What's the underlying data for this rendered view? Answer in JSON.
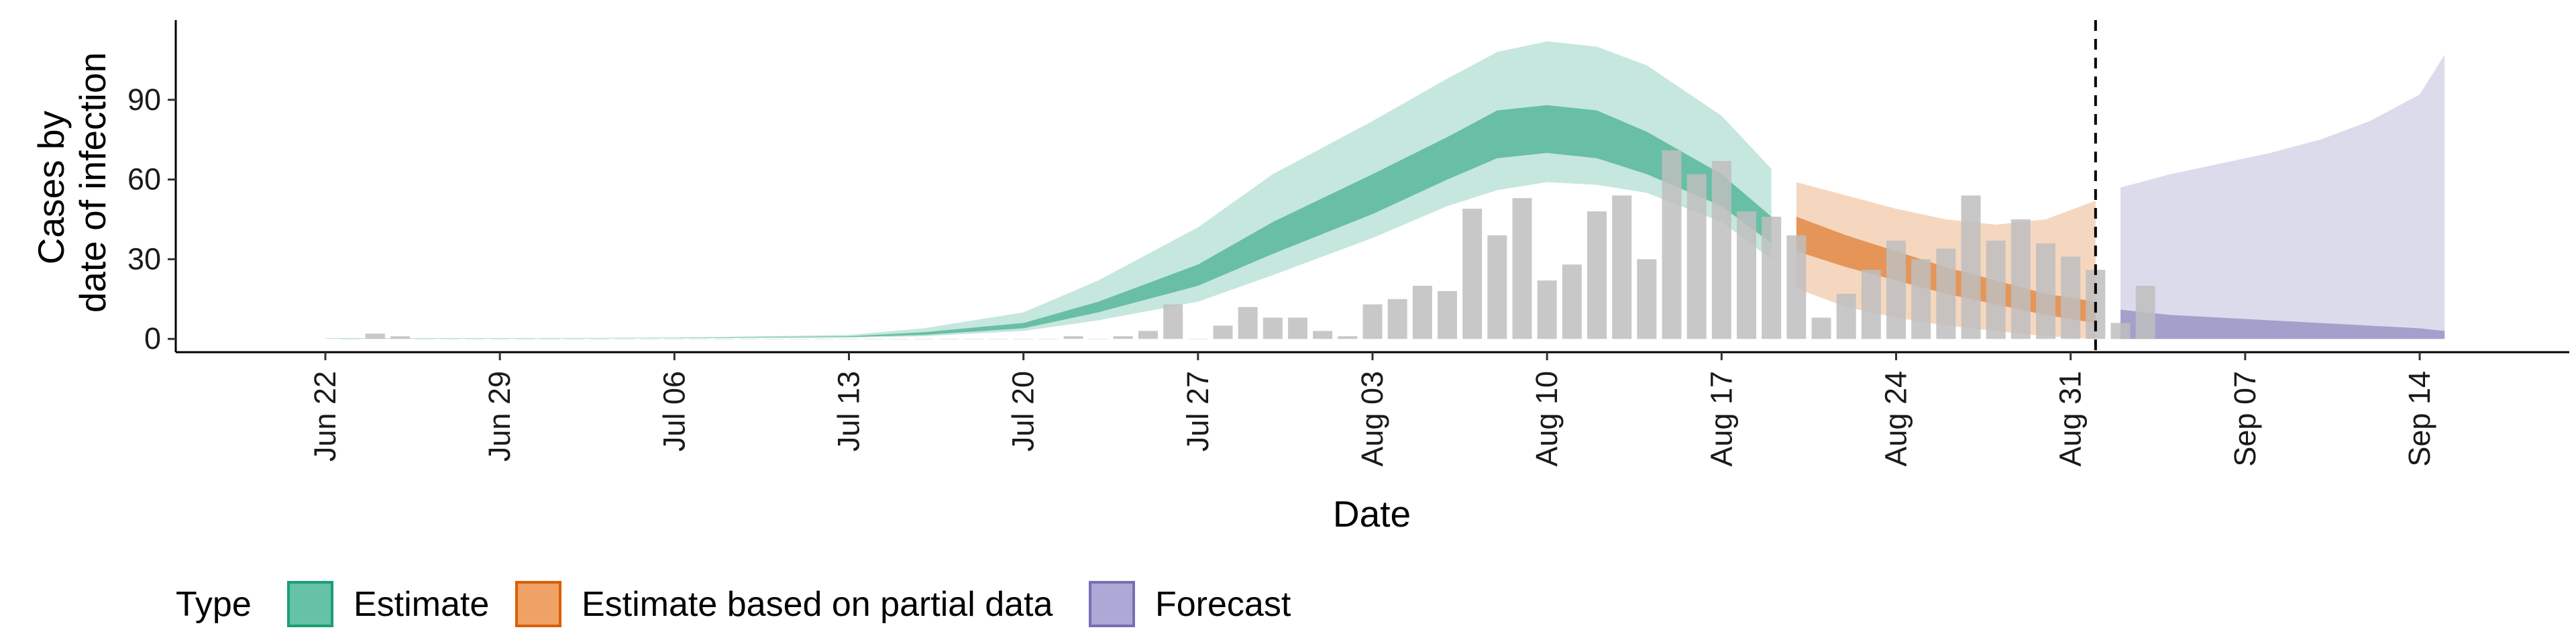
{
  "chart_data": {
    "type": "area",
    "xlabel": "Date",
    "ylabel": [
      "Cases by",
      "date of infection"
    ],
    "y_ticks": [
      0,
      30,
      60,
      90
    ],
    "ylim": [
      -5,
      120
    ],
    "x_range": [
      "2020-06-16",
      "2020-09-20"
    ],
    "x_tick_labels": [
      {
        "date": "2020-06-22",
        "label": "Jun 22"
      },
      {
        "date": "2020-06-29",
        "label": "Jun 29"
      },
      {
        "date": "2020-07-06",
        "label": "Jul 06"
      },
      {
        "date": "2020-07-13",
        "label": "Jul 13"
      },
      {
        "date": "2020-07-20",
        "label": "Jul 20"
      },
      {
        "date": "2020-07-27",
        "label": "Jul 27"
      },
      {
        "date": "2020-08-03",
        "label": "Aug 03"
      },
      {
        "date": "2020-08-10",
        "label": "Aug 10"
      },
      {
        "date": "2020-08-17",
        "label": "Aug 17"
      },
      {
        "date": "2020-08-24",
        "label": "Aug 24"
      },
      {
        "date": "2020-08-31",
        "label": "Aug 31"
      },
      {
        "date": "2020-09-07",
        "label": "Sep 07"
      },
      {
        "date": "2020-09-14",
        "label": "Sep 14"
      }
    ],
    "vline_date": "2020-09-01",
    "legend": {
      "title": "Type",
      "position": "bottom",
      "entries": [
        {
          "name": "Estimate",
          "fill": "#66C2A5",
          "stroke": "#1B9E77"
        },
        {
          "name": "Estimate based on partial data",
          "fill": "#F0A266",
          "stroke": "#D95F02"
        },
        {
          "name": "Forecast",
          "fill": "#ADA8D6",
          "stroke": "#7570B3"
        }
      ]
    },
    "bars": {
      "color": "#BEBEBE",
      "start_date": "2020-06-23",
      "values": [
        0,
        2,
        1,
        0,
        0,
        0,
        0,
        0,
        0,
        0,
        0,
        0,
        0,
        0,
        0,
        0,
        0,
        0,
        0,
        0,
        0,
        0,
        0,
        0,
        0,
        0,
        0,
        0,
        0,
        1,
        0,
        1,
        3,
        13,
        0,
        5,
        12,
        8,
        8,
        3,
        1,
        13,
        15,
        20,
        18,
        49,
        39,
        53,
        22,
        28,
        48,
        54,
        30,
        71,
        62,
        67,
        48,
        46,
        39,
        8,
        17,
        26,
        37,
        30,
        34,
        54,
        37,
        45,
        36,
        31,
        26,
        6,
        20
      ]
    },
    "bands": [
      {
        "type": "Estimate",
        "color": "#1B9E77",
        "dates": [
          "2020-06-22",
          "2020-06-29",
          "2020-07-06",
          "2020-07-13",
          "2020-07-16",
          "2020-07-20",
          "2020-07-23",
          "2020-07-27",
          "2020-07-30",
          "2020-08-03",
          "2020-08-06",
          "2020-08-08",
          "2020-08-10",
          "2020-08-12",
          "2020-08-14",
          "2020-08-17",
          "2020-08-19"
        ],
        "upper90": [
          0.3,
          0.3,
          0.5,
          1.5,
          4,
          10,
          22,
          42,
          62,
          82,
          98,
          108,
          112,
          110,
          103,
          84,
          64
        ],
        "lower90": [
          0.1,
          0.1,
          0.2,
          0.5,
          1,
          3,
          7,
          14,
          24,
          38,
          50,
          56,
          59,
          58,
          55,
          44,
          30
        ],
        "upper50": [
          0.2,
          0.2,
          0.4,
          1,
          2.5,
          6,
          14,
          28,
          44,
          62,
          76,
          86,
          88,
          86,
          78,
          62,
          46
        ],
        "lower50": [
          0.15,
          0.15,
          0.3,
          0.7,
          1.5,
          4,
          10,
          20,
          32,
          47,
          60,
          68,
          70,
          68,
          62,
          50,
          36
        ]
      },
      {
        "type": "Estimate based on partial data",
        "color": "#D95F02",
        "dates": [
          "2020-08-20",
          "2020-08-22",
          "2020-08-24",
          "2020-08-26",
          "2020-08-28",
          "2020-08-30",
          "2020-09-01"
        ],
        "upper90": [
          59,
          54,
          49,
          45,
          43,
          45,
          52
        ],
        "lower90": [
          19,
          12,
          8,
          5,
          3,
          1,
          0
        ],
        "upper50": [
          46,
          39,
          33,
          27,
          22,
          17,
          14
        ],
        "lower50": [
          33,
          27,
          22,
          17,
          13,
          9,
          6
        ]
      },
      {
        "type": "Forecast",
        "color": "#7570B3",
        "dates": [
          "2020-09-02",
          "2020-09-04",
          "2020-09-06",
          "2020-09-08",
          "2020-09-10",
          "2020-09-12",
          "2020-09-14",
          "2020-09-15"
        ],
        "upper90": [
          57,
          62,
          66,
          70,
          75,
          82,
          92,
          107
        ],
        "lower90": [
          0,
          0,
          0,
          0,
          0,
          0,
          0,
          0
        ],
        "upper50": [
          11,
          9,
          8,
          7,
          6,
          5,
          4,
          3
        ],
        "lower50": [
          0,
          0,
          0,
          0,
          0,
          0,
          0,
          0
        ]
      }
    ]
  }
}
